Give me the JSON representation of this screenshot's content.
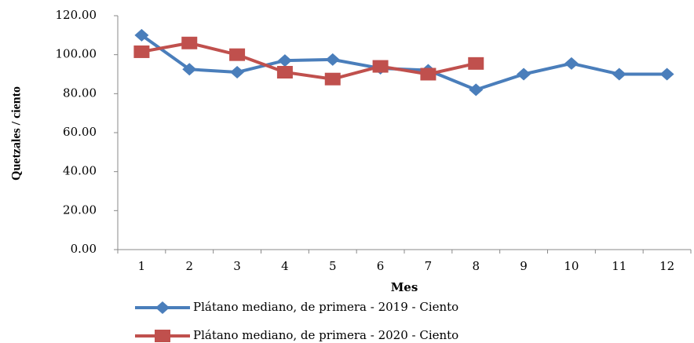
{
  "chart_data": {
    "type": "line",
    "x_label": "Mes",
    "y_label": "Quetzales / ciento",
    "categories": [
      "1",
      "2",
      "3",
      "4",
      "5",
      "6",
      "7",
      "8",
      "9",
      "10",
      "11",
      "12"
    ],
    "series": [
      {
        "name": "Plátano mediano, de primera - 2019 - Ciento",
        "color": "#4a7ebb",
        "marker": "diamond",
        "values": [
          110,
          92.5,
          91,
          97,
          97.5,
          93,
          92,
          82,
          90,
          95.5,
          90,
          90
        ]
      },
      {
        "name": "Plátano mediano, de primera - 2020 - Ciento",
        "color": "#c0504d",
        "marker": "square",
        "values": [
          101.5,
          106,
          100,
          91,
          87.5,
          94,
          90,
          95.5,
          null,
          null,
          null,
          null
        ]
      }
    ],
    "ylim": [
      0,
      120
    ],
    "yticks": [
      {
        "value": 0,
        "label": "0.00"
      },
      {
        "value": 20,
        "label": "20.00"
      },
      {
        "value": 40,
        "label": "40.00"
      },
      {
        "value": 60,
        "label": "60.00"
      },
      {
        "value": 80,
        "label": "80.00"
      },
      {
        "value": 100,
        "label": "100.00"
      },
      {
        "value": 120,
        "label": "120.00"
      }
    ],
    "grid": false
  }
}
